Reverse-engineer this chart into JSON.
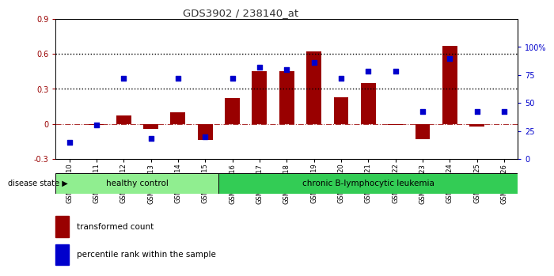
{
  "title": "GDS3902 / 238140_at",
  "samples": [
    "GSM658010",
    "GSM658011",
    "GSM658012",
    "GSM658013",
    "GSM658014",
    "GSM658015",
    "GSM658016",
    "GSM658017",
    "GSM658018",
    "GSM658019",
    "GSM658020",
    "GSM658021",
    "GSM658022",
    "GSM658023",
    "GSM658024",
    "GSM658025",
    "GSM658026"
  ],
  "bar_values": [
    0.0,
    -0.01,
    0.07,
    -0.04,
    0.1,
    -0.14,
    0.22,
    0.45,
    0.45,
    0.62,
    0.23,
    0.35,
    -0.01,
    -0.13,
    0.67,
    -0.02,
    0.0
  ],
  "scatter_pct": [
    15,
    30,
    72,
    18,
    72,
    20,
    72,
    82,
    80,
    86,
    72,
    78,
    78,
    42,
    90,
    42,
    42
  ],
  "bar_color": "#990000",
  "scatter_color": "#0000cc",
  "bar_width": 0.55,
  "ylim_left": [
    -0.3,
    0.9
  ],
  "yticks_left": [
    -0.3,
    0.0,
    0.3,
    0.6,
    0.9
  ],
  "ytick_labels_left": [
    "-0.3",
    "0",
    "0.3",
    "0.6",
    "0.9"
  ],
  "yticks_right_pct": [
    0,
    25,
    50,
    75,
    100
  ],
  "ytick_labels_right": [
    "0",
    "25",
    "50",
    "75",
    "100%"
  ],
  "hlines": [
    0.3,
    0.6
  ],
  "healthy_count": 6,
  "group1_label": "healthy control",
  "group2_label": "chronic B-lymphocytic leukemia",
  "disease_state_label": "disease state",
  "legend_bar": "transformed count",
  "legend_scatter": "percentile rank within the sample",
  "group1_color": "#90EE90",
  "group2_color": "#33CC55",
  "bg_color": "#ffffff"
}
